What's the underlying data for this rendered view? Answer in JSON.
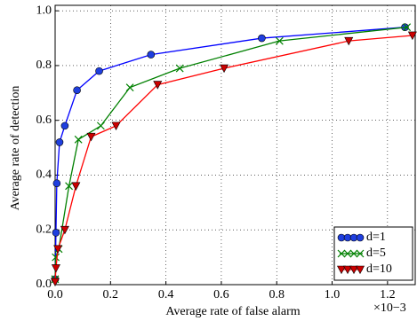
{
  "chart_data": {
    "type": "line",
    "xlabel": "Average rate of false alarm",
    "ylabel": "Average rate of detection",
    "x_multiplier": "×10−3",
    "xlim": [
      0,
      1.3
    ],
    "ylim": [
      0,
      1.02
    ],
    "xticks": [
      {
        "value": 0,
        "label": "0.0"
      },
      0.2,
      0.4,
      0.6,
      0.8,
      {
        "value": 1,
        "label": "1.0"
      },
      1.2
    ],
    "yticks": [
      {
        "value": 0,
        "label": "0.0"
      },
      0.2,
      0.4,
      0.6,
      0.8,
      {
        "value": 1,
        "label": "1.0"
      }
    ],
    "grid": true,
    "legend": "lower right",
    "series": [
      {
        "name": "d=1",
        "color": "#0000ff",
        "marker": "circle",
        "marker_color": "#1f3fdf",
        "x": [
          0,
          0.003,
          0.006,
          0.016,
          0.035,
          0.079,
          0.159,
          0.346,
          0.746,
          1.263
        ],
        "values": [
          0.02,
          0.19,
          0.37,
          0.52,
          0.58,
          0.71,
          0.78,
          0.84,
          0.9,
          0.94
        ]
      },
      {
        "name": "d=5",
        "color": "#008000",
        "marker": "x",
        "marker_color": "#008000",
        "x": [
          0,
          0.002,
          0.013,
          0.05,
          0.084,
          0.165,
          0.27,
          0.45,
          0.81,
          1.27
        ],
        "values": [
          0.02,
          0.1,
          0.13,
          0.36,
          0.53,
          0.58,
          0.72,
          0.79,
          0.89,
          0.94
        ]
      },
      {
        "name": "d=10",
        "color": "#ff0000",
        "marker": "triangle",
        "marker_color": "#cc0000",
        "x": [
          0,
          0.003,
          0.01,
          0.035,
          0.075,
          0.13,
          0.22,
          0.37,
          0.61,
          1.06,
          1.29
        ],
        "values": [
          0.01,
          0.06,
          0.13,
          0.2,
          0.36,
          0.54,
          0.58,
          0.73,
          0.79,
          0.89,
          0.91
        ]
      }
    ]
  }
}
